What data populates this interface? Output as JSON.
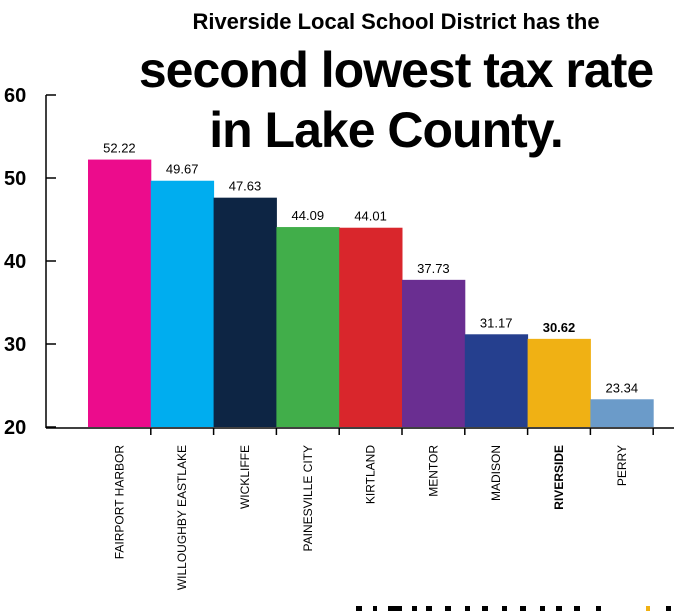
{
  "chart_data": {
    "type": "bar",
    "title_line1": "Riverside Local School District has the",
    "title_line2": "second lowest tax rate",
    "title_line3": "in Lake County.",
    "categories": [
      "FAIRPORT HARBOR",
      "WILLOUGHBY EASTLAKE",
      "WICKLIFFE",
      "PAINESVILLE CITY",
      "KIRTLAND",
      "MENTOR",
      "MADISON",
      "RIVERSIDE",
      "PERRY"
    ],
    "values": [
      52.22,
      49.67,
      47.63,
      44.09,
      44.01,
      37.73,
      31.17,
      30.62,
      23.34
    ],
    "value_labels": [
      "52.22",
      "49.67",
      "47.63",
      "44.09",
      "44.01",
      "37.73",
      "31.17",
      "30.62",
      "23.34"
    ],
    "colors": [
      "#ec0c8c",
      "#00adef",
      "#0d2544",
      "#41ae4a",
      "#d9262c",
      "#6a2e91",
      "#253f8e",
      "#f0b114",
      "#6b9bc9"
    ],
    "highlight": "RIVERSIDE",
    "ylim": [
      20,
      60
    ],
    "yticks": [
      "20",
      "30",
      "40",
      "50",
      "60"
    ],
    "xlabel": "",
    "ylabel": "",
    "grid": false
  }
}
